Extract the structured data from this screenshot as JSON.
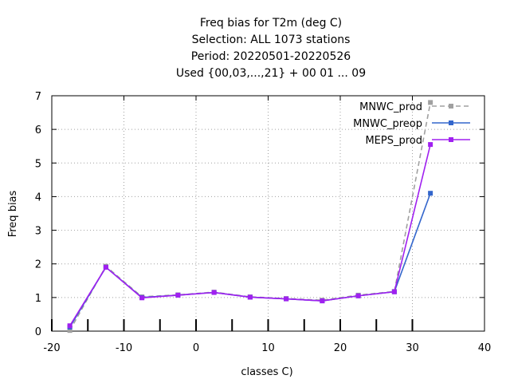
{
  "chart_data": {
    "type": "line",
    "title_lines": [
      "Freq bias  for T2m (deg C)",
      "Selection: ALL    1073 stations",
      "Period: 20220501-20220526",
      "Used {00,03,...,21} + 00 01 ... 09"
    ],
    "xlabel": "classes C)",
    "ylabel": "Freq bias",
    "xlim": [
      -20,
      40
    ],
    "ylim": [
      0,
      7
    ],
    "xticks": [
      -20,
      -10,
      0,
      10,
      20,
      30,
      40
    ],
    "yticks": [
      0,
      1,
      2,
      3,
      4,
      5,
      6,
      7
    ],
    "x_minor_ticks": [
      -20,
      -15,
      -10,
      -5,
      0,
      5,
      10,
      15,
      20,
      25,
      30
    ],
    "grid": true,
    "legend_position": "top-right",
    "series": [
      {
        "name": "MNWC_prod",
        "color": "#a0a0a0",
        "dashed": true,
        "x": [
          -17.5,
          -12.5,
          -7.5,
          -2.5,
          2.5,
          7.5,
          12.5,
          17.5,
          22.5,
          27.5,
          32.5
        ],
        "y": [
          0.02,
          1.93,
          1.02,
          1.08,
          1.16,
          1.02,
          0.97,
          0.92,
          1.07,
          1.18,
          6.8
        ]
      },
      {
        "name": "MNWC_preop",
        "color": "#3366cc",
        "dashed": false,
        "x": [
          -17.5,
          -12.5,
          -7.5,
          -2.5,
          2.5,
          7.5,
          12.5,
          17.5,
          22.5,
          27.5,
          32.5
        ],
        "y": [
          0.12,
          1.9,
          1.0,
          1.07,
          1.15,
          1.01,
          0.96,
          0.9,
          1.05,
          1.17,
          4.1
        ]
      },
      {
        "name": "MEPS_prod",
        "color": "#a020f0",
        "dashed": false,
        "x": [
          -17.5,
          -12.5,
          -7.5,
          -2.5,
          2.5,
          7.5,
          12.5,
          17.5,
          22.5,
          27.5,
          32.5
        ],
        "y": [
          0.16,
          1.9,
          0.99,
          1.07,
          1.15,
          1.01,
          0.96,
          0.9,
          1.05,
          1.17,
          5.55
        ]
      }
    ]
  }
}
